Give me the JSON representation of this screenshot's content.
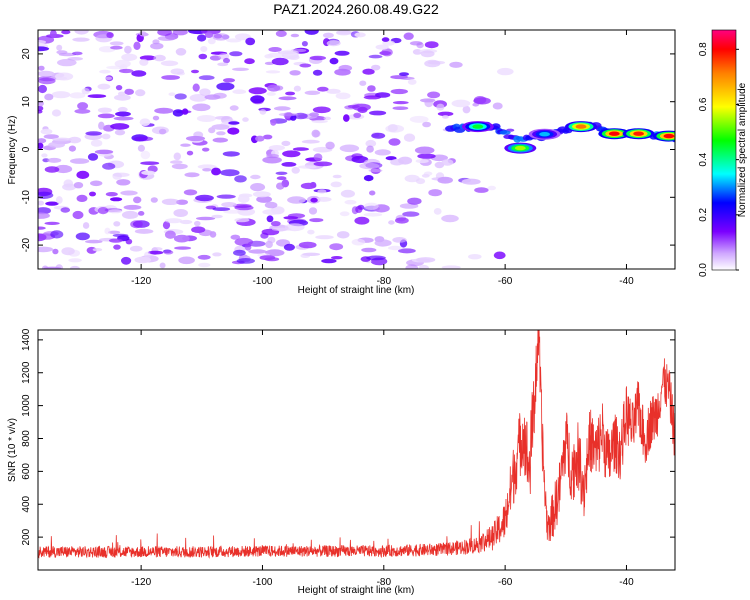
{
  "title": "PAZ1.2024.260.08.49.G22",
  "colors": {
    "snr_line": "#e8302a",
    "axis": "#000000",
    "background": "#ffffff"
  },
  "chart_data": [
    {
      "type": "heatmap",
      "title": "PAZ1.2024.260.08.49.G22",
      "xlabel": "Height of straight line (km)",
      "ylabel": "Frequency (Hz)",
      "xlim": [
        -137,
        -32
      ],
      "ylim": [
        -25,
        25
      ],
      "x_ticks": [
        -120,
        -100,
        -80,
        -60,
        -40
      ],
      "y_ticks": [
        -20,
        -10,
        0,
        10,
        20
      ],
      "grid": false,
      "colorbar": {
        "label": "Normalized spectral amplitude",
        "range": [
          0.0,
          0.87
        ],
        "ticks": [
          "0.0",
          "0.2",
          "0.4",
          "0.6",
          "0.8"
        ],
        "colormap": "rainbow (white-purple-blue-cyan-green-yellow-orange-red-magenta)"
      },
      "ridge": {
        "x": [
          -68,
          -62,
          -58,
          -54,
          -50,
          -46,
          -42,
          -38,
          -34,
          -32
        ],
        "y": [
          4.5,
          4.8,
          2.0,
          2.5,
          4.0,
          5.0,
          3.5,
          3.2,
          2.8,
          2.5
        ]
      },
      "ridge_peaks": [
        {
          "x": -64.5,
          "y": 4.8,
          "amplitude": 0.45
        },
        {
          "x": -57.5,
          "y": 0.3,
          "amplitude": 0.55
        },
        {
          "x": -53.5,
          "y": 3.2,
          "amplitude": 0.32
        },
        {
          "x": -47.5,
          "y": 4.8,
          "amplitude": 0.72
        },
        {
          "x": -42,
          "y": 3.3,
          "amplitude": 0.8
        },
        {
          "x": -38,
          "y": 3.3,
          "amplitude": 0.78
        },
        {
          "x": -33,
          "y": 2.8,
          "amplitude": 0.8
        }
      ],
      "noise_amplitude_range": [
        0.02,
        0.18
      ]
    },
    {
      "type": "line",
      "xlabel": "Height of straight line (km)",
      "ylabel": "SNR (10 * v/v)",
      "xlim": [
        -137,
        -32
      ],
      "ylim": [
        0,
        1460
      ],
      "x_ticks": [
        -120,
        -100,
        -80,
        -60,
        -40
      ],
      "y_ticks": [
        200,
        400,
        600,
        800,
        1000,
        1200,
        1400
      ],
      "grid": false,
      "series": [
        {
          "color": "#e8302a",
          "x": [
            -137,
            -130,
            -120,
            -110,
            -100,
            -90,
            -80,
            -70,
            -65,
            -62,
            -60,
            -59,
            -58,
            -57,
            -56,
            -55,
            -54.5,
            -54,
            -53.5,
            -53,
            -52,
            -51,
            -50,
            -49,
            -48,
            -47,
            -46,
            -45,
            -44,
            -43,
            -42,
            -41,
            -40,
            -39,
            -38,
            -37,
            -36,
            -35,
            -34,
            -33,
            -32
          ],
          "y": [
            110,
            110,
            110,
            110,
            115,
            115,
            115,
            125,
            150,
            200,
            300,
            500,
            700,
            850,
            600,
            1150,
            1450,
            900,
            500,
            250,
            350,
            500,
            800,
            600,
            700,
            500,
            800,
            700,
            850,
            650,
            780,
            720,
            950,
            850,
            1000,
            780,
            900,
            950,
            1150,
            1100,
            800
          ],
          "noise_amplitude": [
            35,
            35,
            35,
            35,
            35,
            35,
            35,
            40,
            50,
            80,
            120,
            180,
            200,
            220,
            250,
            250,
            200,
            200,
            150,
            100,
            150,
            180,
            200,
            200,
            200,
            200,
            200,
            200,
            200,
            200,
            180,
            180,
            180,
            170,
            170,
            160,
            160,
            160,
            150,
            150,
            150
          ]
        }
      ]
    }
  ]
}
